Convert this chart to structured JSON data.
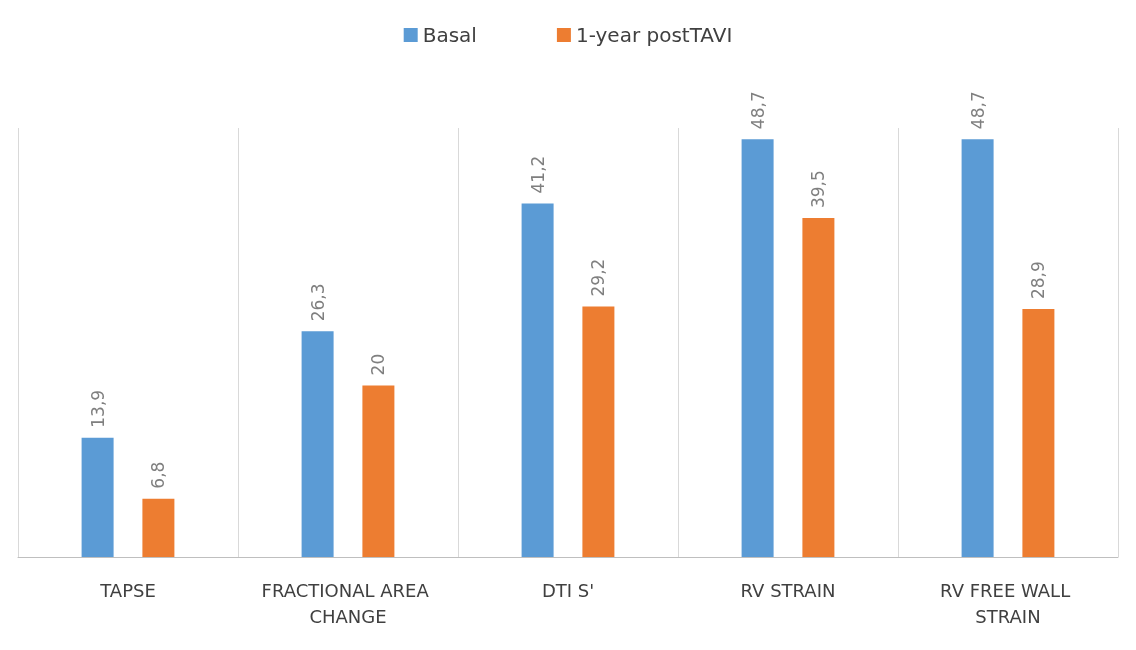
{
  "chart_data": {
    "type": "bar",
    "categories": [
      "TAPSE",
      "FRACTIONAL AREA CHANGE",
      "DTI S'",
      "RV STRAIN",
      "RV FREE WALL STRAIN"
    ],
    "series": [
      {
        "name": "Basal",
        "color": "#5b9bd5",
        "values": [
          13.9,
          26.3,
          41.2,
          48.7,
          48.7
        ],
        "value_labels": [
          "13,9",
          "26,3",
          "41,2",
          "48,7",
          "48,7"
        ]
      },
      {
        "name": "1-year postTAVI",
        "color": "#ed7d31",
        "values": [
          6.8,
          20,
          29.2,
          39.5,
          28.9
        ],
        "value_labels": [
          "6,8",
          "20",
          "29,2",
          "39,5",
          "28,9"
        ]
      }
    ],
    "legend": "top",
    "grid": "x"
  }
}
